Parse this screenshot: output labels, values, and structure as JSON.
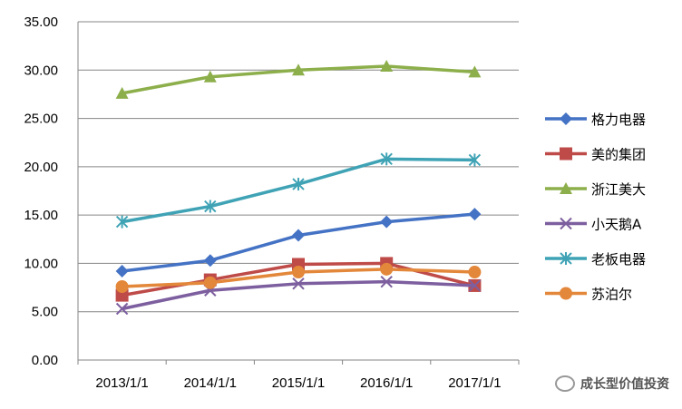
{
  "chart_data": {
    "type": "line",
    "title": "",
    "xlabel": "",
    "ylabel": "",
    "categories": [
      "2013/1/1",
      "2014/1/1",
      "2015/1/1",
      "2016/1/1",
      "2017/1/1"
    ],
    "ylim": [
      0,
      35
    ],
    "yticks": [
      "0.00",
      "5.00",
      "10.00",
      "15.00",
      "20.00",
      "25.00",
      "30.00",
      "35.00"
    ],
    "grid": true,
    "legend": "right",
    "series": [
      {
        "name": "格力电器",
        "color": "#4472C4",
        "marker": "diamond",
        "values": [
          9.2,
          10.3,
          12.9,
          14.3,
          15.1
        ]
      },
      {
        "name": "美的集团",
        "color": "#BE4B48",
        "marker": "square",
        "values": [
          6.7,
          8.3,
          9.9,
          10.0,
          7.7
        ]
      },
      {
        "name": "浙江美大",
        "color": "#8DAF4B",
        "marker": "triangle",
        "values": [
          27.6,
          29.3,
          30.0,
          30.4,
          29.8
        ]
      },
      {
        "name": "小天鹅A",
        "color": "#7D5F9F",
        "marker": "x",
        "values": [
          5.3,
          7.2,
          7.9,
          8.1,
          7.7
        ]
      },
      {
        "name": "老板电器",
        "color": "#3FA3B5",
        "marker": "star",
        "values": [
          14.3,
          15.9,
          18.2,
          20.8,
          20.7
        ]
      },
      {
        "name": "苏泊尔",
        "color": "#E3873A",
        "marker": "circle",
        "values": [
          7.6,
          8.0,
          9.1,
          9.4,
          9.1
        ]
      }
    ]
  },
  "watermark": "成长型价值投资"
}
